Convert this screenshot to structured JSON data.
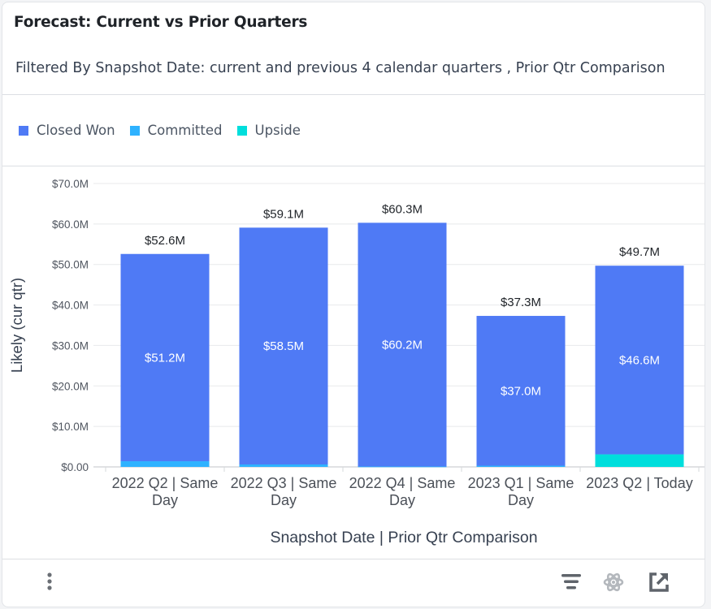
{
  "card": {
    "title": "Forecast: Current vs Prior Quarters",
    "filter_text": "Filtered By Snapshot Date: current and previous 4 calendar quarters , Prior Qtr Comparison"
  },
  "legend": [
    {
      "name": "Closed Won",
      "color": "#4f7af5"
    },
    {
      "name": "Committed",
      "color": "#2eb2ff"
    },
    {
      "name": "Upside",
      "color": "#00dedc"
    }
  ],
  "footer": {
    "icons": [
      "more-options-icon",
      "filter-lines-icon",
      "atom-icon",
      "open-external-icon"
    ]
  },
  "chart_data": {
    "type": "bar",
    "stacked": true,
    "title": "",
    "xlabel": "Snapshot Date | Prior Qtr Comparison",
    "ylabel": "Likely (cur qtr)",
    "ylim": [
      0,
      70
    ],
    "y_unit": "$M",
    "y_ticks": [
      0,
      10,
      20,
      30,
      40,
      50,
      60,
      70
    ],
    "y_tick_labels": [
      "$0.00",
      "$10.0M",
      "$20.0M",
      "$30.0M",
      "$40.0M",
      "$50.0M",
      "$60.0M",
      "$70.0M"
    ],
    "grid": true,
    "legend_position": "top-left",
    "categories": [
      [
        "2022 Q2 | Same",
        "Day"
      ],
      [
        "2022 Q3 | Same",
        "Day"
      ],
      [
        "2022 Q4 | Same",
        "Day"
      ],
      [
        "2023 Q1 | Same",
        "Day"
      ],
      [
        "2023 Q2 | Today"
      ]
    ],
    "series": [
      {
        "name": "Upside",
        "color": "#00dedc",
        "values": [
          0,
          0,
          0,
          0,
          3.1
        ]
      },
      {
        "name": "Committed",
        "color": "#2eb2ff",
        "values": [
          1.4,
          0.6,
          0.1,
          0.3,
          0
        ]
      },
      {
        "name": "Closed Won",
        "color": "#4f7af5",
        "values": [
          51.2,
          58.5,
          60.2,
          37.0,
          46.6
        ]
      }
    ],
    "inner_labels": [
      "$51.2M",
      "$58.5M",
      "$60.2M",
      "$37.0M",
      "$46.6M"
    ],
    "totals": [
      52.6,
      59.1,
      60.3,
      37.3,
      49.7
    ],
    "total_labels": [
      "$52.6M",
      "$59.1M",
      "$60.3M",
      "$37.3M",
      "$49.7M"
    ]
  }
}
